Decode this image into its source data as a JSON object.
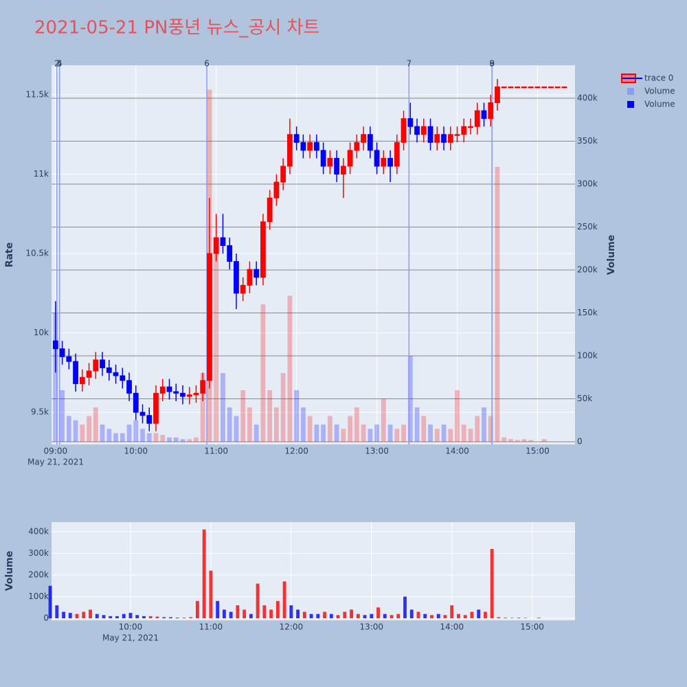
{
  "chart_data": [
    {
      "type": "candlestick",
      "title": "2021-05-21 PN풍년 뉴스_공시 차트",
      "name": "trace 0",
      "increasing_color": "#ff0000",
      "decreasing_color": "#0000ff",
      "x": [
        "2021-05-21 09:00",
        "2021-05-21 09:05",
        "2021-05-21 09:10",
        "2021-05-21 09:15",
        "2021-05-21 09:20",
        "2021-05-21 09:25",
        "2021-05-21 09:30",
        "2021-05-21 09:35",
        "2021-05-21 09:40",
        "2021-05-21 09:45",
        "2021-05-21 09:50",
        "2021-05-21 09:55",
        "2021-05-21 10:00",
        "2021-05-21 10:05",
        "2021-05-21 10:10",
        "2021-05-21 10:15",
        "2021-05-21 10:20",
        "2021-05-21 10:25",
        "2021-05-21 10:30",
        "2021-05-21 10:35",
        "2021-05-21 10:40",
        "2021-05-21 10:45",
        "2021-05-21 10:50",
        "2021-05-21 10:55",
        "2021-05-21 11:00",
        "2021-05-21 11:05",
        "2021-05-21 11:10",
        "2021-05-21 11:15",
        "2021-05-21 11:20",
        "2021-05-21 11:25",
        "2021-05-21 11:30",
        "2021-05-21 11:35",
        "2021-05-21 11:40",
        "2021-05-21 11:45",
        "2021-05-21 11:50",
        "2021-05-21 11:55",
        "2021-05-21 12:00",
        "2021-05-21 12:05",
        "2021-05-21 12:10",
        "2021-05-21 12:15",
        "2021-05-21 12:20",
        "2021-05-21 12:25",
        "2021-05-21 12:30",
        "2021-05-21 12:35",
        "2021-05-21 12:40",
        "2021-05-21 12:45",
        "2021-05-21 12:50",
        "2021-05-21 12:55",
        "2021-05-21 13:00",
        "2021-05-21 13:05",
        "2021-05-21 13:10",
        "2021-05-21 13:15",
        "2021-05-21 13:20",
        "2021-05-21 13:25",
        "2021-05-21 13:30",
        "2021-05-21 13:35",
        "2021-05-21 13:40",
        "2021-05-21 13:45",
        "2021-05-21 13:50",
        "2021-05-21 13:55",
        "2021-05-21 14:00",
        "2021-05-21 14:05",
        "2021-05-21 14:10",
        "2021-05-21 14:15",
        "2021-05-21 14:20",
        "2021-05-21 14:25",
        "2021-05-21 14:30",
        "2021-05-21 14:35",
        "2021-05-21 14:40",
        "2021-05-21 14:45",
        "2021-05-21 14:50",
        "2021-05-21 14:55",
        "2021-05-21 15:00",
        "2021-05-21 15:05",
        "2021-05-21 15:10",
        "2021-05-21 15:15",
        "2021-05-21 15:20"
      ],
      "open": [
        9950,
        9900,
        9850,
        9820,
        9680,
        9720,
        9760,
        9830,
        9780,
        9750,
        9730,
        9700,
        9620,
        9500,
        9480,
        9430,
        9620,
        9660,
        9630,
        9620,
        9600,
        9610,
        9620,
        9700,
        10500,
        10600,
        10550,
        10450,
        10250,
        10300,
        10400,
        10350,
        10700,
        10850,
        10950,
        11050,
        11250,
        11200,
        11150,
        11200,
        11150,
        11050,
        11100,
        11000,
        11050,
        11150,
        11200,
        11250,
        11150,
        11050,
        11100,
        11050,
        11200,
        11350,
        11300,
        11250,
        11300,
        11200,
        11250,
        11200,
        11250,
        11250,
        11300,
        11300,
        11400,
        11350,
        11450,
        11550,
        11550,
        11550,
        11550,
        11550,
        11550,
        11550,
        11550,
        11550,
        11550
      ],
      "high": [
        10200,
        9950,
        9900,
        9870,
        9770,
        9810,
        9880,
        9880,
        9830,
        9800,
        9780,
        9750,
        9670,
        9550,
        9530,
        9670,
        9710,
        9710,
        9680,
        9670,
        9660,
        9670,
        9750,
        10850,
        10750,
        10750,
        10600,
        10500,
        10350,
        10450,
        10450,
        10750,
        10900,
        11000,
        11100,
        11350,
        11300,
        11250,
        11250,
        11250,
        11200,
        11150,
        11150,
        11100,
        11200,
        11250,
        11300,
        11300,
        11200,
        11150,
        11150,
        11250,
        11400,
        11450,
        11350,
        11350,
        11350,
        11300,
        11300,
        11300,
        11300,
        11350,
        11350,
        11450,
        11450,
        11500,
        11600,
        11550,
        11550,
        11550,
        11550,
        11550,
        11550,
        11550,
        11550,
        11550,
        11550
      ],
      "low": [
        9750,
        9800,
        9770,
        9630,
        9630,
        9670,
        9710,
        9730,
        9700,
        9680,
        9650,
        9570,
        9450,
        9430,
        9380,
        9380,
        9570,
        9580,
        9570,
        9550,
        9550,
        9560,
        9570,
        9650,
        10450,
        10500,
        10400,
        10150,
        10200,
        10250,
        10300,
        10300,
        10650,
        10800,
        10900,
        11000,
        11150,
        11100,
        11100,
        11100,
        11000,
        11000,
        10950,
        10850,
        11000,
        11100,
        11150,
        11100,
        11000,
        11000,
        10950,
        11000,
        11150,
        11250,
        11200,
        11200,
        11150,
        11150,
        11150,
        11150,
        11200,
        11200,
        11250,
        11250,
        11300,
        11300,
        11400,
        11550,
        11550,
        11550,
        11550,
        11550,
        11550,
        11550,
        11550,
        11550,
        11550
      ],
      "close": [
        9900,
        9850,
        9820,
        9680,
        9720,
        9760,
        9830,
        9780,
        9750,
        9730,
        9700,
        9620,
        9500,
        9480,
        9430,
        9620,
        9660,
        9630,
        9620,
        9600,
        9610,
        9620,
        9700,
        10500,
        10600,
        10550,
        10450,
        10250,
        10300,
        10400,
        10350,
        10700,
        10850,
        10950,
        11050,
        11250,
        11200,
        11150,
        11200,
        11150,
        11050,
        11100,
        11000,
        11050,
        11150,
        11200,
        11250,
        11150,
        11050,
        11100,
        11050,
        11200,
        11350,
        11300,
        11250,
        11300,
        11200,
        11250,
        11200,
        11250,
        11250,
        11300,
        11300,
        11400,
        11350,
        11450,
        11550,
        11550,
        11550,
        11550,
        11550,
        11550,
        11550,
        11550,
        11550,
        11550,
        11550
      ],
      "series": [
        {
          "name": "Volume",
          "color": "#8c9cf0",
          "axis": "y2",
          "values": [
            150000,
            60000,
            30000,
            25000,
            20000,
            30000,
            40000,
            20000,
            15000,
            10000,
            10000,
            20000,
            25000,
            15000,
            10000,
            10000,
            8000,
            5000,
            5000,
            3000,
            3000,
            5000,
            80000,
            410000,
            220000,
            80000,
            40000,
            30000,
            60000,
            40000,
            20000,
            160000,
            60000,
            40000,
            80000,
            170000,
            60000,
            40000,
            30000,
            20000,
            20000,
            30000,
            20000,
            15000,
            30000,
            40000,
            20000,
            15000,
            20000,
            50000,
            20000,
            15000,
            20000,
            100000,
            40000,
            30000,
            20000,
            15000,
            20000,
            15000,
            60000,
            20000,
            15000,
            30000,
            40000,
            30000,
            320000,
            5000,
            3000,
            2000,
            3000,
            2000,
            0,
            3000,
            0,
            0,
            0
          ]
        }
      ],
      "ylabel": "Rate",
      "y2label": "Volume",
      "xlim": [
        "2021-05-21 08:57",
        "2021-05-21 15:28"
      ],
      "xticks": [
        {
          "value": "2021-05-21 09:00",
          "label": "09:00"
        },
        {
          "value": "2021-05-21 10:00",
          "label": "10:00"
        },
        {
          "value": "2021-05-21 11:00",
          "label": "11:00"
        },
        {
          "value": "2021-05-21 12:00",
          "label": "12:00"
        },
        {
          "value": "2021-05-21 13:00",
          "label": "13:00"
        },
        {
          "value": "2021-05-21 14:00",
          "label": "14:00"
        },
        {
          "value": "2021-05-21 15:00",
          "label": "15:00"
        }
      ],
      "xdate": "May 21, 2021",
      "ylim": [
        9297,
        11686
      ],
      "yticks": [
        {
          "value": 9500,
          "label": "9.5k"
        },
        {
          "value": 10000,
          "label": "10k"
        },
        {
          "value": 10500,
          "label": "10.5k"
        },
        {
          "value": 11000,
          "label": "11k"
        },
        {
          "value": 11500,
          "label": "11.5k"
        }
      ],
      "y2lim": [
        -3200,
        438400
      ],
      "y2ticks": [
        0,
        {
          "value": 50000,
          "label": "50k"
        },
        {
          "value": 100000,
          "label": "100k"
        },
        {
          "value": 150000,
          "label": "150k"
        },
        {
          "value": 200000,
          "label": "200k"
        },
        {
          "value": 250000,
          "label": "250k"
        },
        {
          "value": 300000,
          "label": "300k"
        },
        {
          "value": 350000,
          "label": "350k"
        },
        {
          "value": 400000,
          "label": "400k"
        }
      ],
      "markers": [
        {
          "x": "2021-05-21 09:01",
          "label": "2"
        },
        {
          "x": "2021-05-21 09:03",
          "label": "4"
        },
        {
          "x": "2021-05-21 09:03",
          "label": "5"
        },
        {
          "x": "2021-05-21 10:53",
          "label": "6"
        },
        {
          "x": "2021-05-21 13:24",
          "label": "7"
        },
        {
          "x": "2021-05-21 14:26",
          "label": "8"
        },
        {
          "x": "2021-05-21 14:26",
          "label": "9"
        }
      ],
      "grid": true
    },
    {
      "type": "bar",
      "ylabel": "Volume",
      "series": [
        {
          "name": "Volume",
          "color": "#0000ff",
          "values": [
            150000,
            60000,
            30000,
            25000,
            20000,
            30000,
            40000,
            20000,
            15000,
            10000,
            10000,
            20000,
            25000,
            15000,
            10000,
            10000,
            8000,
            5000,
            5000,
            3000,
            3000,
            5000,
            80000,
            410000,
            220000,
            80000,
            40000,
            30000,
            60000,
            40000,
            20000,
            160000,
            60000,
            40000,
            80000,
            170000,
            60000,
            40000,
            30000,
            20000,
            20000,
            30000,
            20000,
            15000,
            30000,
            40000,
            20000,
            15000,
            20000,
            50000,
            20000,
            15000,
            20000,
            100000,
            40000,
            30000,
            20000,
            15000,
            20000,
            15000,
            60000,
            20000,
            15000,
            30000,
            40000,
            30000,
            320000,
            5000,
            3000,
            2000,
            3000,
            2000,
            0,
            3000,
            0,
            0,
            0
          ]
        }
      ],
      "xlim": [
        "2021-05-21 09:01",
        "2021-05-21 15:32"
      ],
      "xticks": [
        {
          "value": "2021-05-21 10:00",
          "label": "10:00"
        },
        {
          "value": "2021-05-21 11:00",
          "label": "11:00"
        },
        {
          "value": "2021-05-21 12:00",
          "label": "12:00"
        },
        {
          "value": "2021-05-21 13:00",
          "label": "13:00"
        },
        {
          "value": "2021-05-21 14:00",
          "label": "14:00"
        },
        {
          "value": "2021-05-21 15:00",
          "label": "15:00"
        }
      ],
      "xdate": "May 21, 2021",
      "ylim": [
        -9500,
        444000
      ],
      "yticks": [
        0,
        {
          "value": 100000,
          "label": "100k"
        },
        {
          "value": 200000,
          "label": "200k"
        },
        {
          "value": 300000,
          "label": "300k"
        },
        {
          "value": 400000,
          "label": "400k"
        }
      ],
      "grid": true
    }
  ]
}
